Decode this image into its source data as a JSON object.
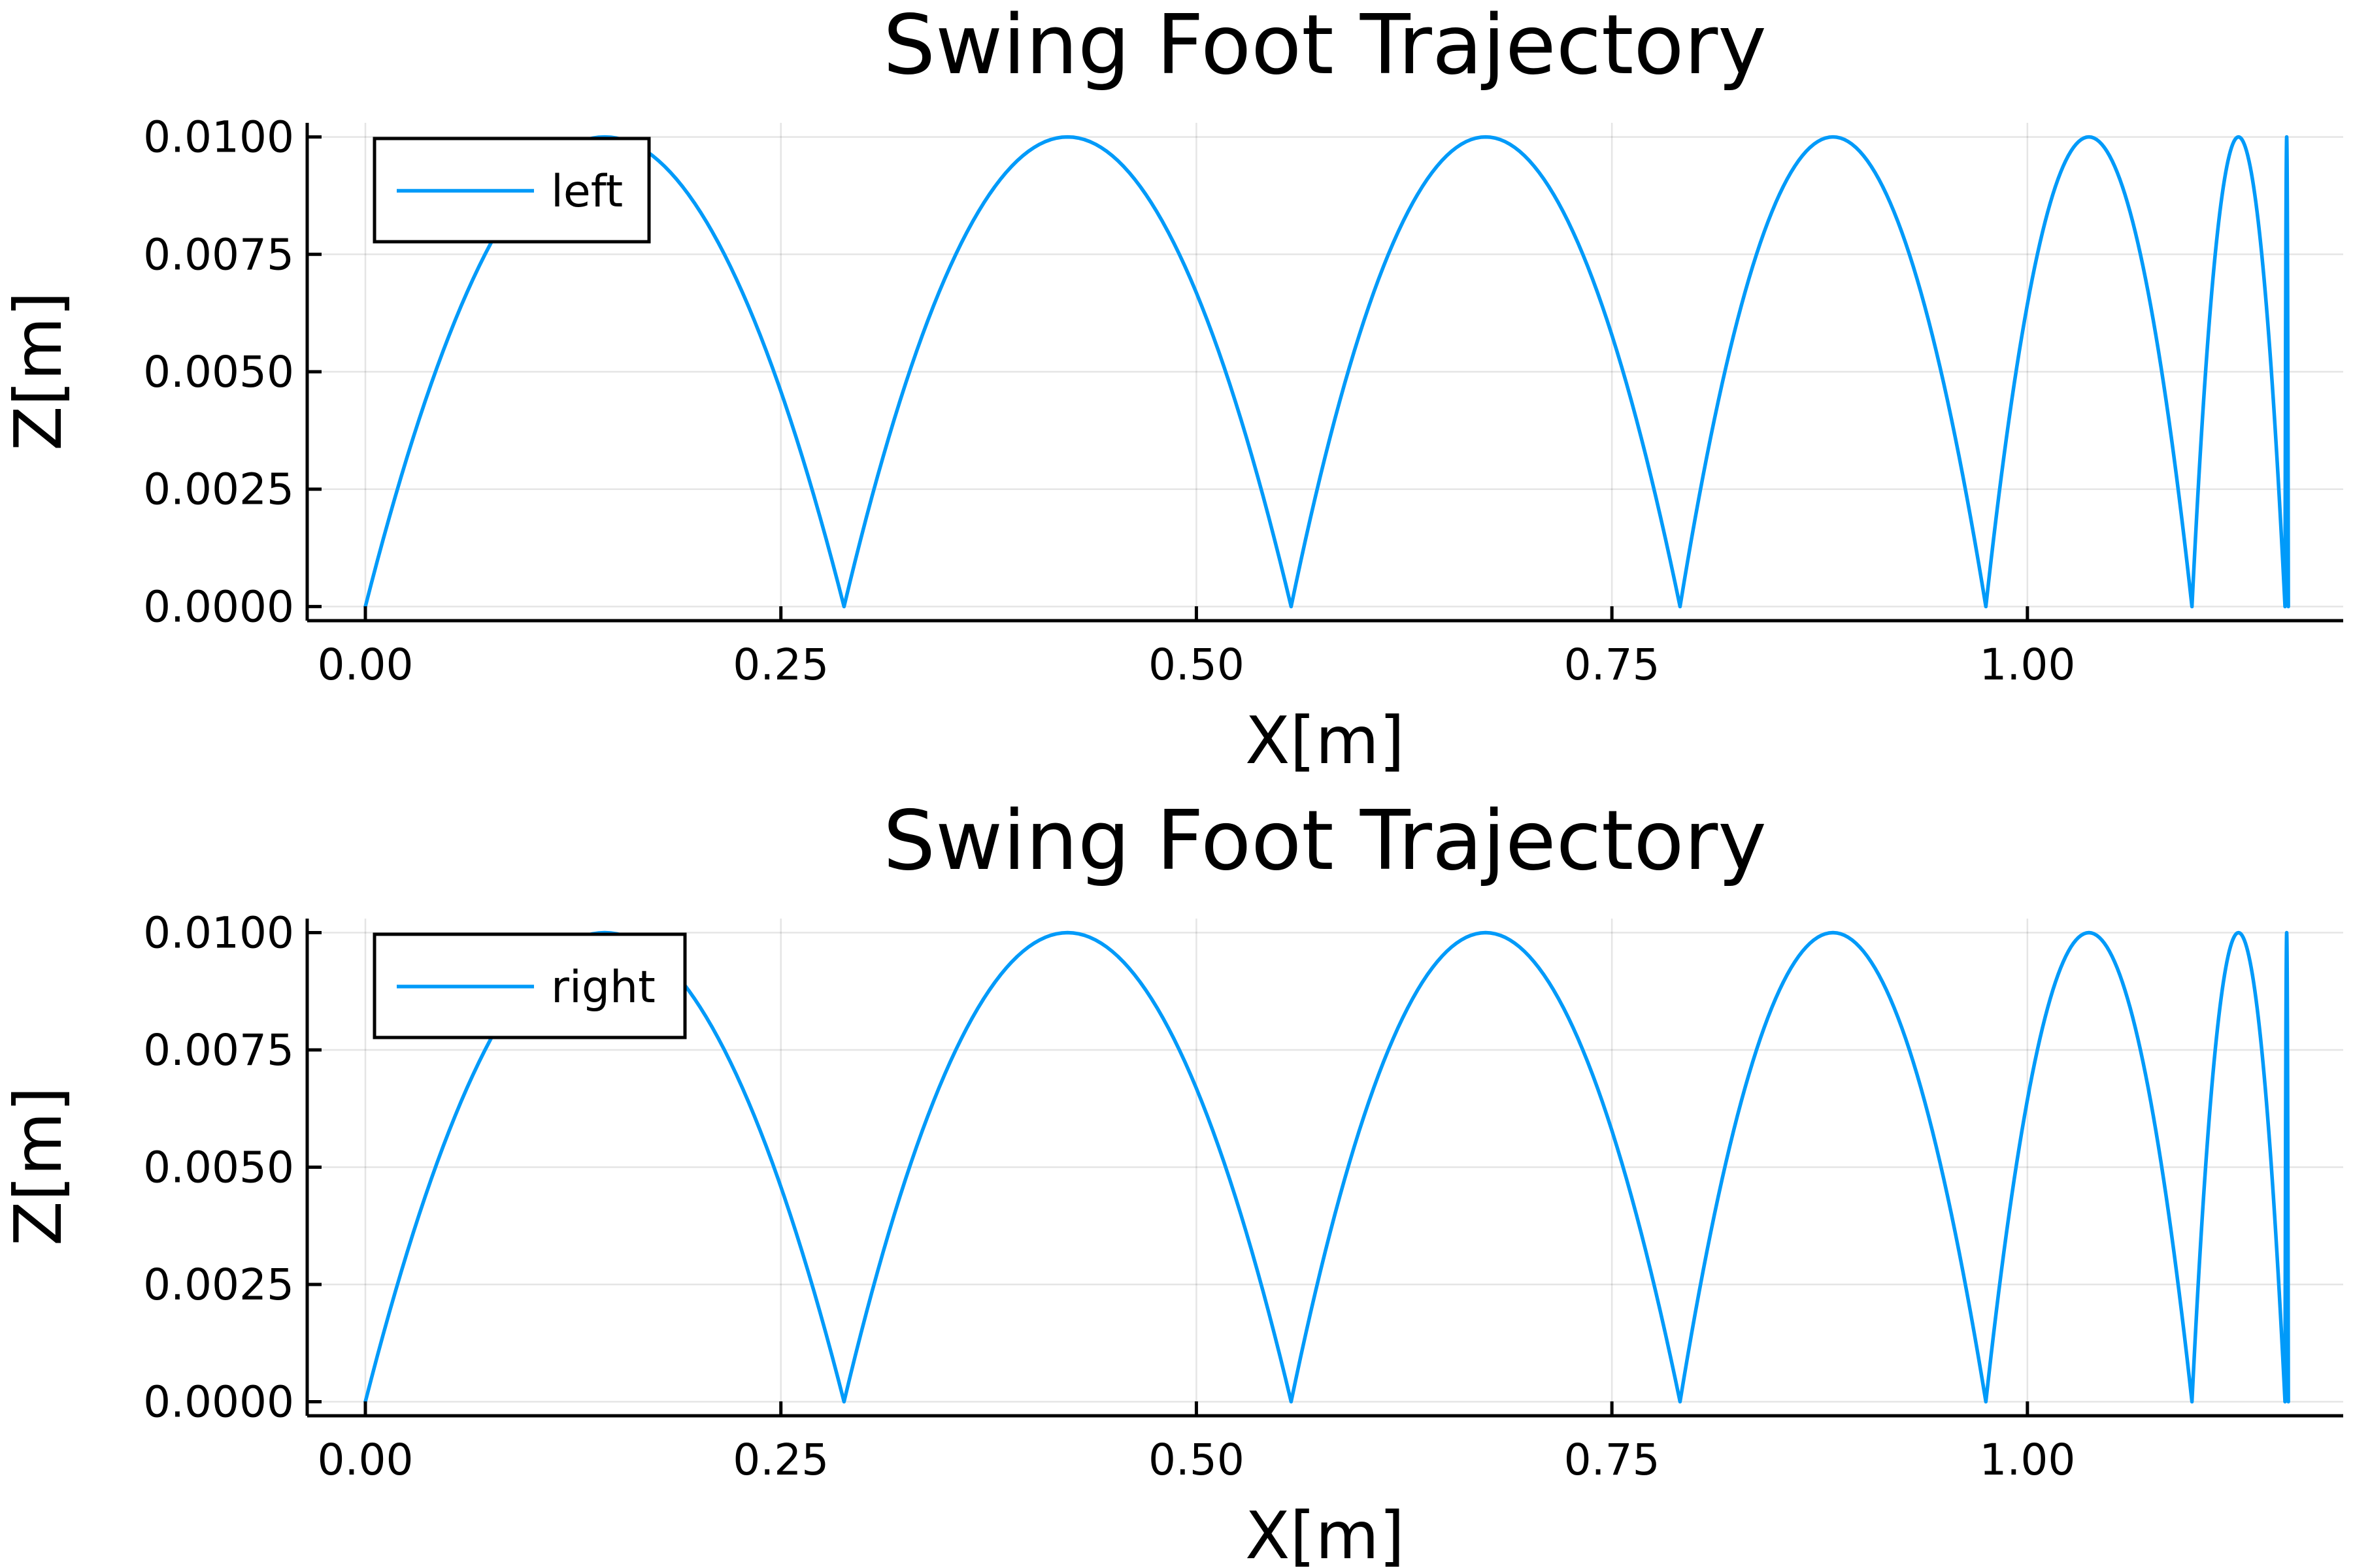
{
  "chart_data": [
    {
      "type": "line",
      "title": "Swing Foot Trajectory",
      "xlabel": "X[m]",
      "ylabel": "Z[m]",
      "xlim": [
        -0.035,
        1.19
      ],
      "ylim": [
        -0.0003,
        0.0103
      ],
      "xticks": [
        0.0,
        0.25,
        0.5,
        0.75,
        1.0
      ],
      "xtick_labels": [
        "0.00",
        "0.25",
        "0.50",
        "0.75",
        "1.00"
      ],
      "yticks": [
        0.0,
        0.0025,
        0.005,
        0.0075,
        0.01
      ],
      "ytick_labels": [
        "0.0000",
        "0.0025",
        "0.0050",
        "0.0075",
        "0.0100"
      ],
      "grid": true,
      "legend_position": "top-left",
      "series": [
        {
          "name": "left",
          "color": "#009af9",
          "peak_height": 0.01,
          "step_boundaries_x": [
            0.0,
            0.288,
            0.557,
            0.791,
            0.975,
            1.099,
            1.155,
            1.157
          ]
        }
      ]
    },
    {
      "type": "line",
      "title": "Swing Foot Trajectory",
      "xlabel": "X[m]",
      "ylabel": "Z[m]",
      "xlim": [
        -0.035,
        1.19
      ],
      "ylim": [
        -0.0003,
        0.0103
      ],
      "xticks": [
        0.0,
        0.25,
        0.5,
        0.75,
        1.0
      ],
      "xtick_labels": [
        "0.00",
        "0.25",
        "0.50",
        "0.75",
        "1.00"
      ],
      "yticks": [
        0.0,
        0.0025,
        0.005,
        0.0075,
        0.01
      ],
      "ytick_labels": [
        "0.0000",
        "0.0025",
        "0.0050",
        "0.0075",
        "0.0100"
      ],
      "grid": true,
      "legend_position": "top-left",
      "series": [
        {
          "name": "right",
          "color": "#009af9",
          "peak_height": 0.01,
          "step_boundaries_x": [
            0.0,
            0.288,
            0.557,
            0.791,
            0.975,
            1.099,
            1.155,
            1.157
          ]
        }
      ]
    }
  ]
}
